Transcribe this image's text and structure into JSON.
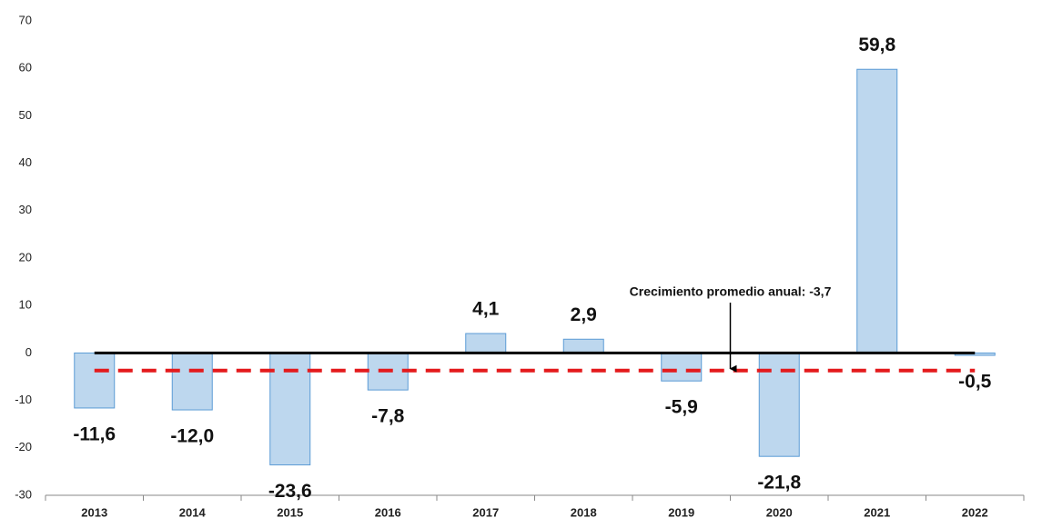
{
  "chart_data": {
    "type": "bar",
    "categories": [
      "2013",
      "2014",
      "2015",
      "2016",
      "2017",
      "2018",
      "2019",
      "2020",
      "2021",
      "2022"
    ],
    "values": [
      -11.6,
      -12.0,
      -23.6,
      -7.8,
      4.1,
      2.9,
      -5.9,
      -21.8,
      59.8,
      -0.5
    ],
    "value_labels": [
      "-11,6",
      "-12,0",
      "-23,6",
      "-7,8",
      "4,1",
      "2,9",
      "-5,9",
      "-21,8",
      "59,8",
      "-0,5"
    ],
    "color": "#bdd7ee",
    "edge_color": "#5b9bd5",
    "average": -3.7,
    "average_color": "#e41a1c",
    "average_label": "Crecimiento promedio anual: -3,7",
    "ylim": [
      -30,
      70
    ],
    "yticks": [
      -30,
      -20,
      -10,
      0,
      10,
      20,
      30,
      40,
      50,
      60,
      70
    ]
  }
}
